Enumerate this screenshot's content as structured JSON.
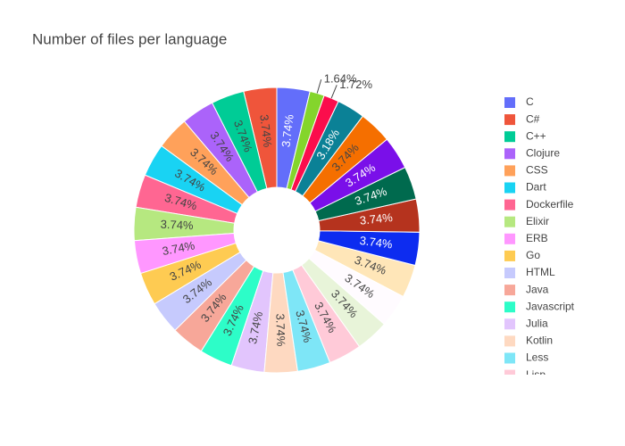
{
  "chart_data": {
    "type": "pie",
    "title": "Number of files per language",
    "categories": [
      "C",
      "C#",
      "C++",
      "Clojure",
      "CSS",
      "Dart",
      "Dockerfile",
      "Elixir",
      "ERB",
      "Go",
      "HTML",
      "Java",
      "Javascript",
      "Julia",
      "Kotlin",
      "Less",
      "Lisp",
      null,
      null,
      null,
      null,
      null,
      null,
      null,
      null,
      null,
      null,
      null
    ],
    "values": [
      3.74,
      3.74,
      3.74,
      3.74,
      3.74,
      3.74,
      3.74,
      3.74,
      3.74,
      3.74,
      3.74,
      3.74,
      3.74,
      3.74,
      3.74,
      3.74,
      3.74,
      3.74,
      3.74,
      3.74,
      3.74,
      3.74,
      3.74,
      3.74,
      3.74,
      3.18,
      1.72,
      1.64
    ],
    "value_labels": [
      "3.74%",
      "3.74%",
      "3.74%",
      "3.74%",
      "3.74%",
      "3.74%",
      "3.74%",
      "3.74%",
      "3.74%",
      "3.74%",
      "3.74%",
      "3.74%",
      "3.74%",
      "3.74%",
      "3.74%",
      "3.74%",
      "3.74%",
      "3.74%",
      "3.74%",
      "3.74%",
      "3.74%",
      "3.74%",
      "3.74%",
      "3.74%",
      "3.74%",
      "3.18%",
      "1.72%",
      "1.64%"
    ],
    "colors": [
      "#636efa",
      "#ef553b",
      "#00cc96",
      "#ab63fa",
      "#ffa15a",
      "#19d3f3",
      "#ff6692",
      "#b6e880",
      "#ff97ff",
      "#fecb52",
      "#c6cafd",
      "#f7a799",
      "#2dfdc8",
      "#e2c5fd",
      "#fed9c1",
      "#7ee6f7",
      "#ffcad8",
      "#e8f4d9",
      "#fffbff",
      "#ffe6b8",
      "#0d2cf0",
      "#b5331e",
      "#006a4e",
      "#7a0fe9",
      "#f56f00",
      "#0b8196",
      "#fb0d4c",
      "#84d52c"
    ],
    "hole": 0.3,
    "direction": "counterclockwise",
    "legend": "right"
  }
}
